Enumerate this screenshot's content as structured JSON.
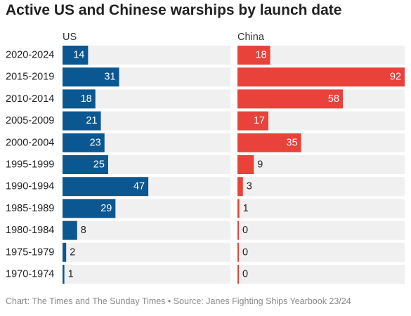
{
  "title": "Active US and Chinese warships by launch date",
  "footer": "Chart: The Times and The Sunday Times • Source: Janes Fighting Ships Yearbook 23/24",
  "colors": {
    "US": "#0b5791",
    "China": "#e8423b",
    "track": "#f0f0f0"
  },
  "chart_data": {
    "type": "bar",
    "orientation": "horizontal",
    "layout": "split-panels",
    "categories": [
      "2020-2024",
      "2015-2019",
      "2010-2014",
      "2005-2009",
      "2000-2004",
      "1995-1999",
      "1990-1994",
      "1985-1989",
      "1980-1984",
      "1975-1979",
      "1970-1974"
    ],
    "series": [
      {
        "name": "US",
        "values": [
          14,
          31,
          18,
          21,
          23,
          25,
          47,
          29,
          8,
          2,
          1
        ]
      },
      {
        "name": "China",
        "values": [
          18,
          92,
          58,
          17,
          35,
          9,
          3,
          1,
          0,
          0,
          0
        ]
      }
    ],
    "xlim": [
      0,
      92
    ],
    "title": "Active US and Chinese warships by launch date",
    "grid": false,
    "legend": "none"
  }
}
